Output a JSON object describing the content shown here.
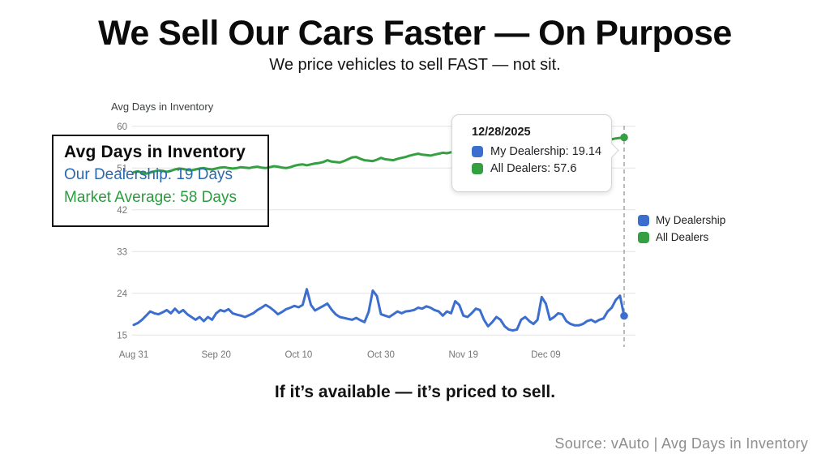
{
  "page": {
    "title": "We Sell Our Cars Faster — On Purpose",
    "subtitle": "We price vehicles to sell FAST — not sit.",
    "tagline": "If it’s available — it’s priced to sell.",
    "source": "Source: vAuto | Avg Days in Inventory"
  },
  "annotation": {
    "title": "Avg Days in Inventory",
    "line1": "Our Dealership: 19 Days",
    "line2": "Market Average: 58 Days"
  },
  "tooltip": {
    "date": "12/28/2025",
    "rows": [
      {
        "label": "My Dealership: 19.14",
        "color": "#3b6ecf"
      },
      {
        "label": "All Dealers: 57.6",
        "color": "#34a042"
      }
    ]
  },
  "legend": {
    "items": [
      {
        "label": "My Dealership",
        "color": "#3b6ecf"
      },
      {
        "label": "All Dealers",
        "color": "#34a042"
      }
    ]
  },
  "colors": {
    "blue_line": "#3b6ecf",
    "green_line": "#34a042",
    "grid": "#e4e4e4",
    "axis_text": "#757575",
    "dashed_cursor": "#9aa0a6",
    "annotation_blue_text": "#2a69b0",
    "annotation_green_text": "#2b9b3e"
  },
  "chart_data": {
    "type": "line",
    "title": "Avg Days in Inventory",
    "grid": true,
    "legend_position": "right",
    "ylim": [
      15,
      60
    ],
    "yticks": [
      15,
      24,
      33,
      42,
      51,
      60
    ],
    "xticks": {
      "days": [
        0,
        20,
        40,
        60,
        80,
        100
      ],
      "labels": [
        "Aug 31",
        "Sep 20",
        "Oct 10",
        "Oct 30",
        "Nov 19",
        "Dec 09"
      ]
    },
    "x_days_total": 119,
    "cursor_date": "12/28/2025",
    "end_values": {
      "my_dealership": 19.14,
      "all_dealers": 57.6
    },
    "series": [
      {
        "name": "All Dealers",
        "color": "#34a042",
        "values": [
          50.1,
          50.3,
          50.0,
          49.8,
          50.0,
          50.3,
          50.5,
          50.4,
          50.2,
          50.4,
          50.7,
          50.9,
          50.8,
          50.6,
          50.5,
          50.7,
          50.9,
          51.0,
          50.8,
          50.7,
          50.9,
          51.1,
          51.2,
          51.0,
          50.9,
          51.0,
          51.2,
          51.1,
          51.0,
          51.2,
          51.3,
          51.1,
          51.0,
          51.2,
          51.4,
          51.3,
          51.1,
          51.0,
          51.2,
          51.5,
          51.7,
          51.8,
          51.6,
          51.8,
          52.0,
          52.1,
          52.3,
          52.7,
          52.4,
          52.3,
          52.2,
          52.5,
          52.9,
          53.3,
          53.4,
          53.0,
          52.7,
          52.6,
          52.5,
          52.8,
          53.2,
          52.9,
          52.8,
          52.7,
          53.0,
          53.2,
          53.4,
          53.7,
          53.9,
          54.1,
          53.9,
          53.8,
          53.7,
          53.9,
          54.1,
          54.3,
          54.2,
          54.4,
          54.6,
          54.5,
          54.7,
          54.9,
          55.0,
          54.8,
          55.0,
          55.2,
          55.4,
          55.3,
          55.5,
          55.7,
          55.6,
          55.8,
          56.0,
          56.1,
          55.9,
          56.1,
          56.3,
          56.2,
          56.4,
          56.5,
          56.4,
          56.6,
          56.7,
          56.6,
          56.8,
          56.9,
          57.0,
          56.9,
          57.1,
          57.0,
          57.2,
          57.1,
          57.3,
          57.2,
          57.4,
          57.3,
          57.2,
          57.4,
          57.5,
          57.6
        ]
      },
      {
        "name": "My Dealership",
        "color": "#3b6ecf",
        "values": [
          17.2,
          17.6,
          18.3,
          19.2,
          20.1,
          19.7,
          19.5,
          19.9,
          20.4,
          19.7,
          20.7,
          19.8,
          20.4,
          19.5,
          18.9,
          18.3,
          18.9,
          18.0,
          18.9,
          18.3,
          19.7,
          20.4,
          20.1,
          20.6,
          19.7,
          19.4,
          19.2,
          18.9,
          19.3,
          19.7,
          20.4,
          20.9,
          21.5,
          21.0,
          20.3,
          19.5,
          20.0,
          20.6,
          20.9,
          21.3,
          21.0,
          21.5,
          24.9,
          21.5,
          20.3,
          20.8,
          21.3,
          21.8,
          20.5,
          19.5,
          18.9,
          18.7,
          18.5,
          18.3,
          18.7,
          18.2,
          17.8,
          20.0,
          24.6,
          23.4,
          19.5,
          19.2,
          18.9,
          19.5,
          20.1,
          19.7,
          20.1,
          20.2,
          20.4,
          20.9,
          20.7,
          21.2,
          20.9,
          20.4,
          20.1,
          19.2,
          20.1,
          19.7,
          22.3,
          21.5,
          19.2,
          18.9,
          19.7,
          20.7,
          20.4,
          18.3,
          16.9,
          17.8,
          18.9,
          18.3,
          16.9,
          16.2,
          16.0,
          16.2,
          18.3,
          18.9,
          18.0,
          17.4,
          18.3,
          23.2,
          21.8,
          18.3,
          18.9,
          19.7,
          19.5,
          18.0,
          17.4,
          17.1,
          17.1,
          17.4,
          18.0,
          18.3,
          17.8,
          18.3,
          18.6,
          20.1,
          20.9,
          22.6,
          23.5,
          19.14
        ]
      }
    ]
  }
}
